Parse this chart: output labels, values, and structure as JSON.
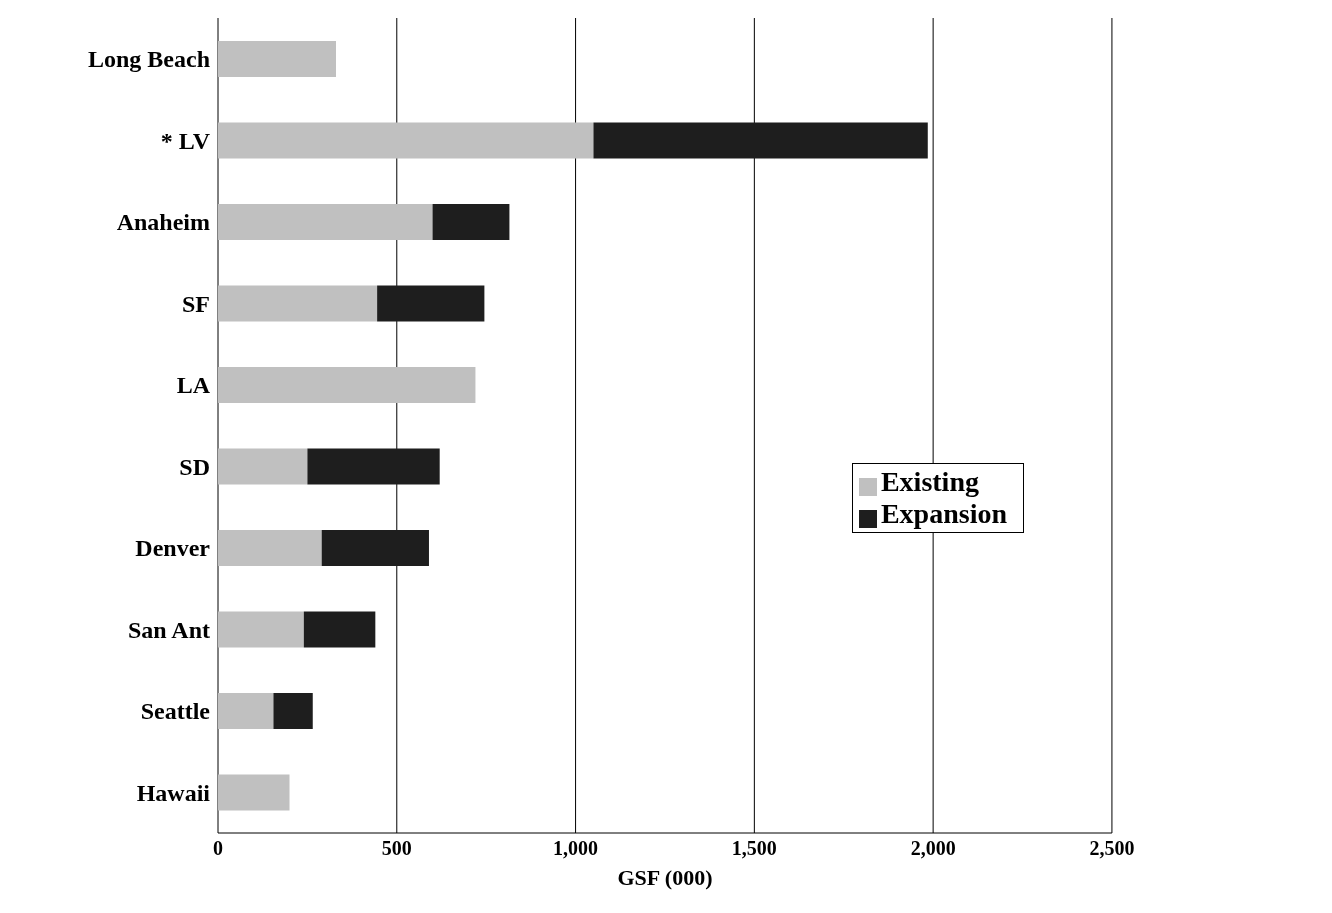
{
  "chart_data": {
    "type": "bar",
    "orientation": "horizontal",
    "stacked": true,
    "xlabel": "GSF (000)",
    "categories": [
      "Long Beach",
      "* LV",
      "Anaheim",
      "SF",
      "LA",
      "SD",
      "Denver",
      "San Ant",
      "Seattle",
      "Hawaii"
    ],
    "series": [
      {
        "name": "Existing",
        "color": "#c0c0c0",
        "values": [
          330,
          1050,
          600,
          445,
          720,
          250,
          290,
          240,
          155,
          200
        ]
      },
      {
        "name": "Expansion",
        "color": "#1e1e1e",
        "values": [
          null,
          935,
          215,
          300,
          null,
          370,
          300,
          200,
          110,
          null
        ]
      }
    ],
    "xlim": [
      0,
      2500
    ],
    "xticks": [
      0,
      500,
      {
        "value": 1000,
        "label": "1,000"
      },
      {
        "value": 1500,
        "label": "1,500"
      },
      {
        "value": 2000,
        "label": "2,000"
      },
      {
        "value": 2500,
        "label": "2,500"
      }
    ],
    "grid": "x",
    "legend": "right"
  }
}
